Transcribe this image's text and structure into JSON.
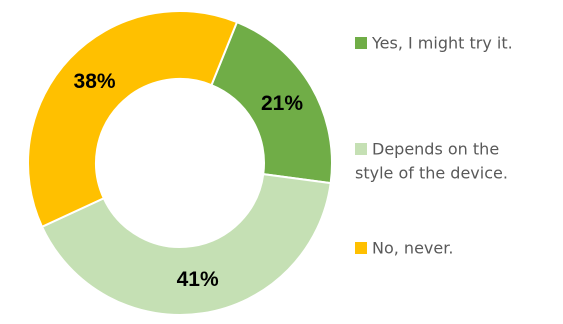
{
  "chart_data": {
    "type": "pie",
    "donut": true,
    "title": "",
    "slices": [
      {
        "label": "Yes, I might try it.",
        "value": 21,
        "display": "21%",
        "color": "#70ad47"
      },
      {
        "label": "Depends on the style of the device.",
        "value": 41,
        "display": "41%",
        "color": "#c5e0b4"
      },
      {
        "label": "No, never.",
        "value": 38,
        "display": "38%",
        "color": "#ffc000"
      }
    ],
    "start_angle_deg": 22,
    "legend": {
      "placement": "right",
      "entries": [
        {
          "lines": [
            "Yes, I might try it."
          ],
          "color": "#70ad47"
        },
        {
          "lines": [
            "Depends on the",
            "style of the device."
          ],
          "color": "#c5e0b4"
        },
        {
          "lines": [
            "No, never."
          ],
          "color": "#ffc000"
        }
      ]
    }
  }
}
